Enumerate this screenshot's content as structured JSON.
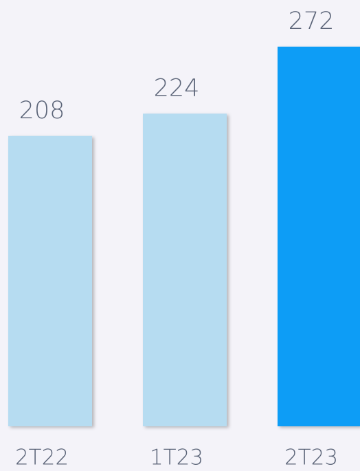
{
  "chart_data": {
    "type": "bar",
    "categories": [
      "2T22",
      "1T23",
      "2T23"
    ],
    "values": [
      208,
      224,
      272
    ],
    "colors": [
      "#b6dcf1",
      "#b6dcf1",
      "#0b9df6"
    ]
  }
}
